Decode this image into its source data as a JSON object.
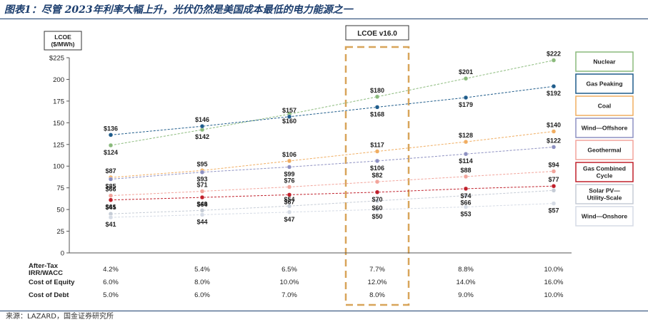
{
  "page": {
    "title": "图表1：尽管 2023年利率大幅上升，光伏仍然是美国成本最低的电力能源之一",
    "source": "来源：LAZARD，国金证券研究所"
  },
  "chart_data": {
    "type": "line",
    "ylabel": "LCOE ($/MWh)",
    "ylabel_lines": [
      "LCOE",
      "($/MWh)"
    ],
    "ylim": [
      0,
      225
    ],
    "yticks": [
      0,
      25,
      50,
      75,
      100,
      125,
      150,
      175,
      200,
      225
    ],
    "ytick_labels": [
      "0",
      "25",
      "50",
      "75",
      "100",
      "125",
      "150",
      "175",
      "200",
      "$225"
    ],
    "categories": [
      "4.2%",
      "5.4%",
      "6.5%",
      "7.7%",
      "8.8%",
      "10.0%"
    ],
    "highlight": {
      "index": 3,
      "label": "LCOE v16.0"
    },
    "legend_position": "right",
    "series": [
      {
        "name": "Nuclear",
        "color": "#8aba7b",
        "values": [
          124,
          142,
          160,
          180,
          201,
          222
        ],
        "labels": [
          "$124",
          "$142",
          "$160",
          "$180",
          "$201",
          "$222"
        ],
        "label_pos": [
          "below",
          "below",
          "below",
          "above",
          "above",
          "above"
        ]
      },
      {
        "name": "Gas Peaking",
        "color": "#1f5c8b",
        "values": [
          136,
          146,
          157,
          168,
          179,
          192
        ],
        "labels": [
          "$136",
          "$146",
          "$157",
          "$168",
          "$179",
          "$192"
        ],
        "label_pos": [
          "above",
          "above",
          "above",
          "below",
          "below",
          "below"
        ]
      },
      {
        "name": "Coal",
        "color": "#f0ad61",
        "values": [
          87,
          95,
          106,
          117,
          128,
          140
        ],
        "labels": [
          "$87",
          "$95",
          "$106",
          "$117",
          "$128",
          "$140"
        ],
        "label_pos": [
          "above",
          "above",
          "above",
          "above",
          "above",
          "above"
        ]
      },
      {
        "name": "Wind—Offshore",
        "color": "#8e91c2",
        "values": [
          85,
          93,
          99,
          106,
          114,
          122
        ],
        "labels": [
          "$85",
          "$93",
          "$99",
          "$106",
          "$114",
          "$122"
        ],
        "label_pos": [
          "below",
          "below",
          "below",
          "below",
          "below",
          "above"
        ]
      },
      {
        "name": "Geothermal",
        "color": "#f2a49b",
        "values": [
          66,
          71,
          76,
          82,
          88,
          94
        ],
        "labels": [
          "$66",
          "$71",
          "$76",
          "$82",
          "$88",
          "$94"
        ],
        "label_pos": [
          "above",
          "above",
          "above",
          "above",
          "above",
          "above"
        ]
      },
      {
        "name": "Gas Combined Cycle",
        "legend_lines": [
          "Gas Combined",
          "Cycle"
        ],
        "color": "#c0202b",
        "values": [
          61,
          64,
          67,
          70,
          74,
          77
        ],
        "labels": [
          "$61",
          "$64",
          "$67",
          "$70",
          "$74",
          "$77"
        ],
        "label_pos": [
          "below",
          "below",
          "below",
          "below",
          "below",
          "above"
        ]
      },
      {
        "name": "Solar PV—Utility-Scale",
        "legend_lines": [
          "Solar PV—",
          "Utility-Scale"
        ],
        "color": "#c5ccd6",
        "values": [
          45,
          49,
          54,
          60,
          66,
          72
        ],
        "labels": [
          "$45",
          "$49",
          "$54",
          "$60",
          "$66",
          ""
        ],
        "label_pos": [
          "above",
          "above",
          "above",
          "below",
          "below",
          "above"
        ]
      },
      {
        "name": "Wind—Onshore",
        "color": "#d5dbe5",
        "values": [
          41,
          44,
          47,
          50,
          53,
          57
        ],
        "labels": [
          "$41",
          "$44",
          "$47",
          "$50",
          "$53",
          "$57"
        ],
        "label_pos": [
          "below",
          "below",
          "below",
          "below",
          "below",
          "below"
        ]
      }
    ],
    "table": [
      {
        "label": "After-Tax IRR/WACC",
        "label_lines": [
          "After-Tax",
          "IRR/WACC"
        ],
        "values": [
          "4.2%",
          "5.4%",
          "6.5%",
          "7.7%",
          "8.8%",
          "10.0%"
        ]
      },
      {
        "label": "Cost of Equity",
        "values": [
          "6.0%",
          "8.0%",
          "10.0%",
          "12.0%",
          "14.0%",
          "16.0%"
        ]
      },
      {
        "label": "Cost of Debt",
        "values": [
          "5.0%",
          "6.0%",
          "7.0%",
          "8.0%",
          "9.0%",
          "10.0%"
        ]
      }
    ]
  }
}
